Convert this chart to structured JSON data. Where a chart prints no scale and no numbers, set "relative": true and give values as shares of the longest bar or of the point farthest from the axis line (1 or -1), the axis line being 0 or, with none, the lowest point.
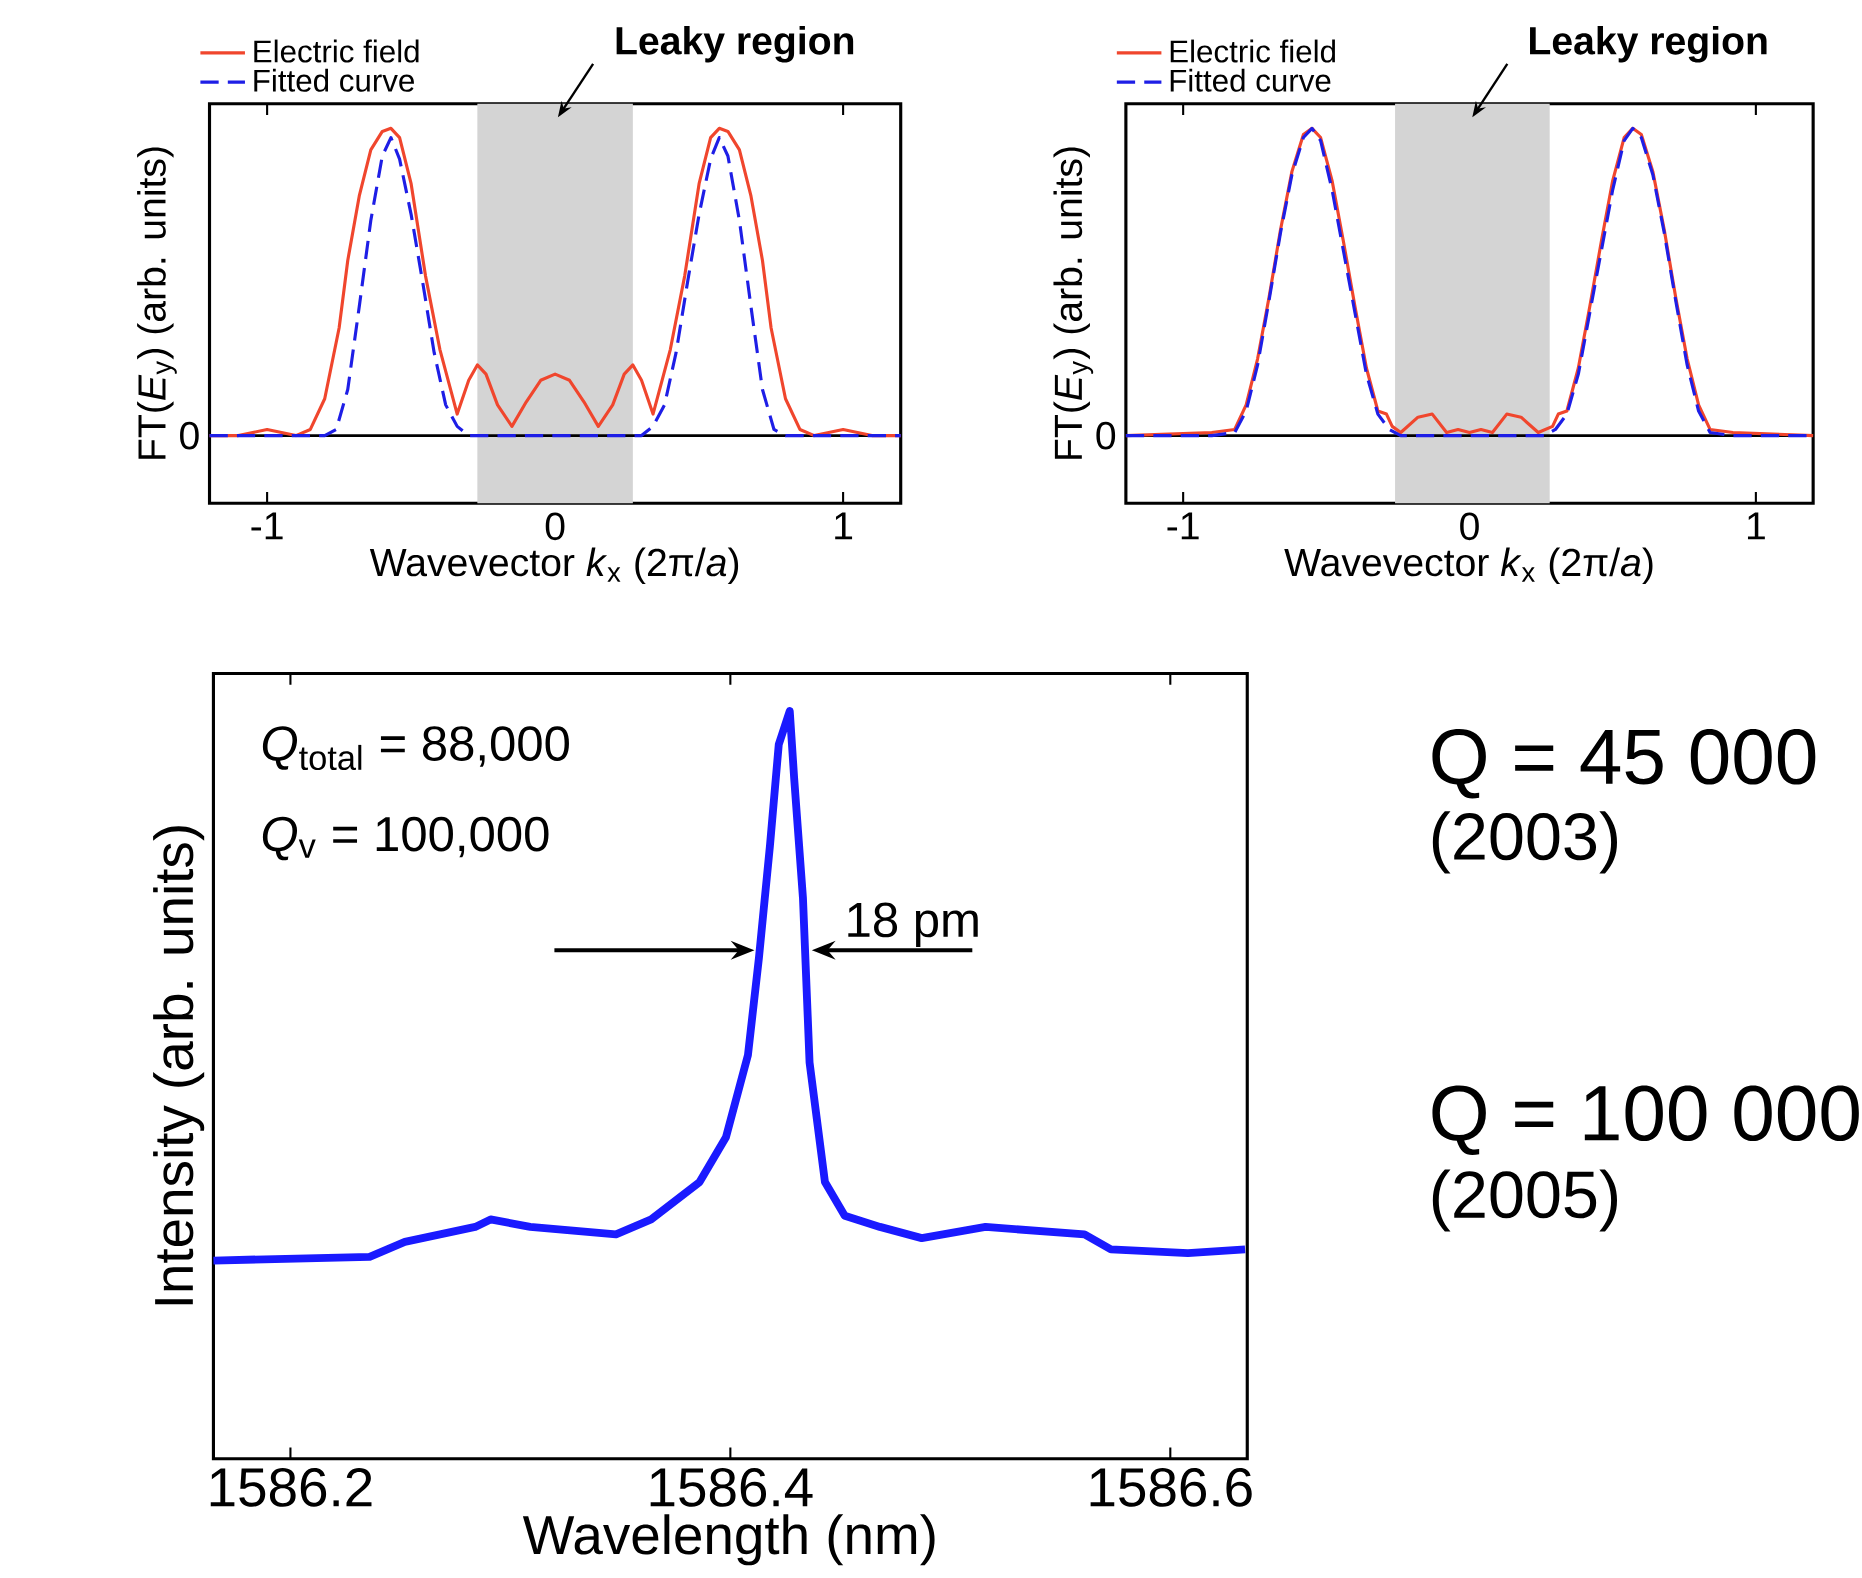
{
  "chart_data": [
    {
      "type": "line",
      "relative": true,
      "xlabel": "Wavevector *k*$_{x}$ (2π/*a*)",
      "ylabel": "FT(*E*$_{y}$) (arb. units)",
      "xlim": [
        -1.2,
        1.2
      ],
      "xticks": [
        -1,
        0,
        1
      ],
      "legend": "top left",
      "marker": "none",
      "bands": [
        {
          "axis": "x",
          "from": -0.27,
          "to": 0.27,
          "label": "Leaky region",
          "color": "#d4d4d4"
        }
      ],
      "ref_lines": [
        {
          "axis": "y",
          "value": 0,
          "label": "0",
          "color": "#000000"
        }
      ],
      "series": [
        {
          "name": "Electric field",
          "color": "#f0462d",
          "line_style": "solid",
          "x": [
            -1.2,
            -1.1,
            -1.0,
            -0.9,
            -0.85,
            -0.8,
            -0.75,
            -0.72,
            -0.68,
            -0.64,
            -0.6,
            -0.57,
            -0.54,
            -0.5,
            -0.45,
            -0.4,
            -0.36,
            -0.34,
            -0.3,
            -0.27,
            -0.24,
            -0.2,
            -0.15,
            -0.1,
            -0.05,
            0,
            0.05,
            0.1,
            0.15,
            0.2,
            0.24,
            0.27,
            0.3,
            0.34,
            0.36,
            0.4,
            0.45,
            0.5,
            0.54,
            0.57,
            0.6,
            0.64,
            0.68,
            0.72,
            0.75,
            0.8,
            0.85,
            0.9,
            1.0,
            1.1,
            1.2
          ],
          "values": [
            0,
            0,
            0.02,
            0,
            0.02,
            0.12,
            0.35,
            0.57,
            0.78,
            0.93,
            0.99,
            1.0,
            0.97,
            0.82,
            0.52,
            0.28,
            0.14,
            0.07,
            0.18,
            0.23,
            0.2,
            0.1,
            0.03,
            0.11,
            0.18,
            0.2,
            0.18,
            0.11,
            0.03,
            0.1,
            0.2,
            0.23,
            0.18,
            0.07,
            0.14,
            0.28,
            0.52,
            0.82,
            0.97,
            1.0,
            0.99,
            0.93,
            0.78,
            0.57,
            0.35,
            0.12,
            0.02,
            0,
            0.02,
            0,
            0
          ]
        },
        {
          "name": "Fitted curve",
          "color": "#1e1ee6",
          "line_style": "dashed",
          "x": [
            -1.2,
            -0.9,
            -0.8,
            -0.76,
            -0.72,
            -0.68,
            -0.64,
            -0.6,
            -0.57,
            -0.54,
            -0.5,
            -0.46,
            -0.42,
            -0.38,
            -0.34,
            -0.3,
            0,
            0.3,
            0.34,
            0.38,
            0.42,
            0.46,
            0.5,
            0.54,
            0.57,
            0.6,
            0.64,
            0.68,
            0.72,
            0.76,
            0.8,
            0.9,
            1.2
          ],
          "values": [
            0,
            0,
            0,
            0.02,
            0.15,
            0.42,
            0.7,
            0.91,
            0.97,
            0.9,
            0.72,
            0.5,
            0.27,
            0.1,
            0.03,
            0,
            0,
            0,
            0.03,
            0.1,
            0.27,
            0.5,
            0.72,
            0.9,
            0.97,
            0.91,
            0.7,
            0.42,
            0.15,
            0.02,
            0,
            0,
            0
          ]
        }
      ]
    },
    {
      "type": "line",
      "relative": true,
      "xlabel": "Wavevector *k*$_{x}$ (2π/*a*)",
      "ylabel": "FT(*E*$_{y}$) (arb. units)",
      "xlim": [
        -1.2,
        1.2
      ],
      "xticks": [
        -1,
        0,
        1
      ],
      "legend": "top left",
      "marker": "none",
      "bands": [
        {
          "axis": "x",
          "from": -0.26,
          "to": 0.28,
          "label": "Leaky region",
          "color": "#d4d4d4"
        }
      ],
      "ref_lines": [
        {
          "axis": "y",
          "value": 0,
          "label": "0",
          "color": "#000000"
        }
      ],
      "series": [
        {
          "name": "Electric field",
          "color": "#f0462d",
          "line_style": "solid",
          "x": [
            -1.2,
            -0.9,
            -0.82,
            -0.78,
            -0.74,
            -0.7,
            -0.66,
            -0.62,
            -0.58,
            -0.55,
            -0.52,
            -0.48,
            -0.44,
            -0.4,
            -0.36,
            -0.32,
            -0.29,
            -0.27,
            -0.24,
            -0.18,
            -0.13,
            -0.08,
            -0.04,
            0,
            0.04,
            0.08,
            0.13,
            0.18,
            0.24,
            0.29,
            0.31,
            0.34,
            0.38,
            0.42,
            0.46,
            0.5,
            0.54,
            0.57,
            0.6,
            0.64,
            0.68,
            0.72,
            0.76,
            0.8,
            0.84,
            0.92,
            1.2
          ],
          "values": [
            0,
            0.01,
            0.02,
            0.1,
            0.25,
            0.45,
            0.67,
            0.86,
            0.98,
            1.0,
            0.97,
            0.83,
            0.63,
            0.42,
            0.22,
            0.08,
            0.07,
            0.03,
            0.01,
            0.06,
            0.07,
            0.01,
            0.02,
            0.01,
            0.02,
            0.01,
            0.07,
            0.06,
            0.01,
            0.03,
            0.07,
            0.08,
            0.22,
            0.42,
            0.63,
            0.83,
            0.97,
            1.0,
            0.98,
            0.86,
            0.67,
            0.45,
            0.25,
            0.1,
            0.02,
            0.01,
            0
          ]
        },
        {
          "name": "Fitted curve",
          "color": "#1e1ee6",
          "line_style": "dashed",
          "x": [
            -1.2,
            -0.9,
            -0.82,
            -0.78,
            -0.74,
            -0.7,
            -0.66,
            -0.62,
            -0.58,
            -0.55,
            -0.52,
            -0.48,
            -0.44,
            -0.4,
            -0.36,
            -0.32,
            -0.28,
            -0.24,
            0,
            0.26,
            0.3,
            0.34,
            0.38,
            0.42,
            0.46,
            0.5,
            0.54,
            0.57,
            0.6,
            0.64,
            0.68,
            0.72,
            0.76,
            0.8,
            0.84,
            0.92,
            1.2
          ],
          "values": [
            0,
            0,
            0.01,
            0.08,
            0.23,
            0.44,
            0.66,
            0.85,
            0.97,
            1.0,
            0.96,
            0.8,
            0.6,
            0.4,
            0.2,
            0.07,
            0.02,
            0,
            0,
            0,
            0.02,
            0.07,
            0.2,
            0.4,
            0.6,
            0.8,
            0.96,
            1.0,
            0.97,
            0.85,
            0.66,
            0.44,
            0.23,
            0.08,
            0.01,
            0,
            0
          ]
        }
      ]
    },
    {
      "type": "line",
      "relative": true,
      "xlabel": "Wavelength (nm)",
      "ylabel": "Intensity (arb. units)",
      "xlim": [
        1586.165,
        1586.635
      ],
      "xticks": [
        1586.2,
        1586.4,
        1586.6
      ],
      "marker": "none",
      "annotations": [
        "*Q*$_{total}$ = 88,000",
        "*Q*$_{v}$ = 100,000",
        "18 pm",
        "Q = 45 000",
        "(2003)",
        "Q = 100 000",
        "(2005)"
      ],
      "series": [
        {
          "color": "#1a1aff",
          "line_style": "solid",
          "x": [
            1586.165,
            1586.236,
            1586.252,
            1586.284,
            1586.291,
            1586.309,
            1586.348,
            1586.364,
            1586.386,
            1586.398,
            1586.408,
            1586.413,
            1586.418,
            1586.422,
            1586.427,
            1586.429,
            1586.433,
            1586.436,
            1586.443,
            1586.452,
            1586.468,
            1586.487,
            1586.516,
            1586.561,
            1586.573,
            1586.608,
            1586.634
          ],
          "values": [
            0.265,
            0.27,
            0.29,
            0.31,
            0.32,
            0.31,
            0.3,
            0.32,
            0.37,
            0.43,
            0.54,
            0.67,
            0.82,
            0.955,
            1.0,
            0.91,
            0.75,
            0.53,
            0.37,
            0.325,
            0.31,
            0.295,
            0.31,
            0.3,
            0.28,
            0.275,
            0.28
          ]
        }
      ]
    }
  ]
}
